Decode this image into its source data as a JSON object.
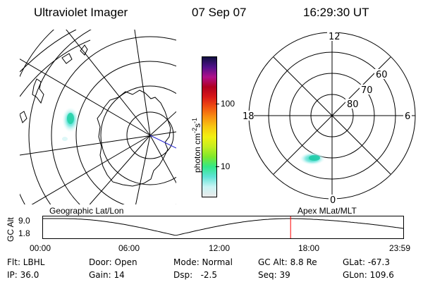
{
  "header": {
    "instrument": "Ultraviolet Imager",
    "date": "07 Sep 07",
    "time": "16:29:30 UT"
  },
  "geo_panel": {
    "label": "Geographic Lat/Lon"
  },
  "polar_panel": {
    "label": "Apex MLat/MLT",
    "mlt_labels": [
      "12",
      "18",
      "6",
      "0"
    ],
    "lat_labels": [
      "60",
      "70",
      "80"
    ]
  },
  "colorbar": {
    "unit_text": "photon cm",
    "unit_exp1": "-2",
    "unit_mid": "s",
    "unit_exp2": "-1",
    "tick_labels": [
      "100",
      "10"
    ],
    "log_scale": true,
    "colors": [
      "#eaeaea",
      "#c8f4f4",
      "#5fe3d6",
      "#32e888",
      "#7fe82a",
      "#c4ee20",
      "#f2f010",
      "#f8c810",
      "#f89010",
      "#f05010",
      "#d81818",
      "#b00020",
      "#b0108a",
      "#50108a",
      "#101040"
    ]
  },
  "altitude_strip": {
    "axis_label": "GC Alt",
    "y_ticks": [
      "9.0",
      "1.8"
    ],
    "x_ticks": [
      "00:00",
      "06:00",
      "12:00",
      "18:00",
      "23:59"
    ],
    "current_marker_time": "16:29",
    "marker_color": "#ff0000"
  },
  "info": {
    "row1": {
      "flt": "Flt: LBHL",
      "door": "Door: Open",
      "mode": "Mode: Normal",
      "gc_alt": "GC Alt: 8.8 Re",
      "glat": "GLat: -67.3"
    },
    "row2": {
      "ip": "IP: 36.0",
      "gain": "Gain: 14",
      "dsp": "Dsp:   -2.5",
      "seq": "Seq: 39",
      "glon": "GLon: 109.6"
    }
  }
}
